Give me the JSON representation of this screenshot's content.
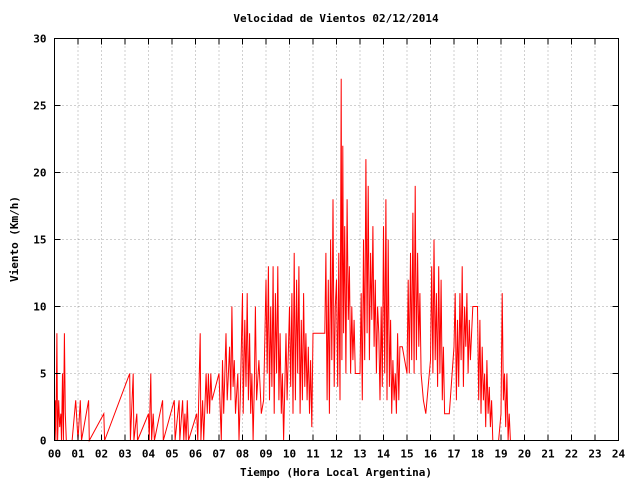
{
  "chart_data": {
    "type": "line",
    "title": "Velocidad de Vientos 02/12/2014",
    "xlabel": "Tiempo (Hora Local Argentina)",
    "ylabel": "Viento (Km/h)",
    "xlim": [
      0,
      24
    ],
    "ylim": [
      0,
      30
    ],
    "x_ticks": [
      "00",
      "01",
      "02",
      "03",
      "04",
      "05",
      "06",
      "07",
      "08",
      "09",
      "10",
      "11",
      "12",
      "13",
      "14",
      "15",
      "16",
      "17",
      "18",
      "19",
      "20",
      "21",
      "22",
      "23",
      "24"
    ],
    "y_ticks": [
      "0",
      "5",
      "10",
      "15",
      "20",
      "25",
      "30"
    ],
    "grid": true,
    "series": [
      {
        "color": "#ff0000",
        "points": [
          [
            0.0,
            0
          ],
          [
            0.03,
            3
          ],
          [
            0.06,
            0
          ],
          [
            0.1,
            8
          ],
          [
            0.13,
            0
          ],
          [
            0.18,
            3
          ],
          [
            0.22,
            1
          ],
          [
            0.27,
            2
          ],
          [
            0.3,
            0
          ],
          [
            0.34,
            5
          ],
          [
            0.38,
            0
          ],
          [
            0.42,
            8
          ],
          [
            0.46,
            2
          ],
          [
            0.5,
            0
          ],
          [
            0.75,
            0
          ],
          [
            0.9,
            3
          ],
          [
            1.0,
            0
          ],
          [
            1.1,
            3
          ],
          [
            1.15,
            0
          ],
          [
            1.45,
            3
          ],
          [
            1.48,
            0
          ],
          [
            2.1,
            2
          ],
          [
            2.13,
            0
          ],
          [
            3.2,
            5
          ],
          [
            3.23,
            0
          ],
          [
            3.35,
            5
          ],
          [
            3.38,
            0
          ],
          [
            3.5,
            2
          ],
          [
            3.53,
            0
          ],
          [
            4.0,
            2
          ],
          [
            4.03,
            0
          ],
          [
            4.1,
            5
          ],
          [
            4.13,
            0
          ],
          [
            4.2,
            2
          ],
          [
            4.25,
            0
          ],
          [
            4.6,
            3
          ],
          [
            4.63,
            0
          ],
          [
            5.1,
            3
          ],
          [
            5.13,
            0
          ],
          [
            5.3,
            3
          ],
          [
            5.33,
            0
          ],
          [
            5.45,
            3
          ],
          [
            5.5,
            0
          ],
          [
            5.55,
            2
          ],
          [
            5.6,
            0
          ],
          [
            5.65,
            3
          ],
          [
            5.7,
            0
          ],
          [
            6.05,
            2
          ],
          [
            6.1,
            0
          ],
          [
            6.2,
            8
          ],
          [
            6.23,
            0
          ],
          [
            6.3,
            3
          ],
          [
            6.35,
            0
          ],
          [
            6.45,
            5
          ],
          [
            6.5,
            2
          ],
          [
            6.55,
            5
          ],
          [
            6.6,
            2
          ],
          [
            6.65,
            5
          ],
          [
            6.7,
            3
          ],
          [
            7.0,
            5
          ],
          [
            7.1,
            0
          ],
          [
            7.15,
            6
          ],
          [
            7.2,
            2
          ],
          [
            7.3,
            8
          ],
          [
            7.35,
            3
          ],
          [
            7.45,
            7
          ],
          [
            7.5,
            3
          ],
          [
            7.55,
            10
          ],
          [
            7.6,
            4
          ],
          [
            7.65,
            6
          ],
          [
            7.7,
            2
          ],
          [
            7.8,
            5
          ],
          [
            7.85,
            0
          ],
          [
            7.9,
            3
          ],
          [
            8.0,
            11
          ],
          [
            8.03,
            2
          ],
          [
            8.1,
            9
          ],
          [
            8.15,
            4
          ],
          [
            8.2,
            11
          ],
          [
            8.25,
            3
          ],
          [
            8.3,
            8
          ],
          [
            8.35,
            2
          ],
          [
            8.4,
            5
          ],
          [
            8.45,
            0
          ],
          [
            8.5,
            4
          ],
          [
            8.55,
            10
          ],
          [
            8.6,
            3
          ],
          [
            8.7,
            6
          ],
          [
            8.8,
            2
          ],
          [
            8.9,
            3
          ],
          [
            9.0,
            12
          ],
          [
            9.05,
            5
          ],
          [
            9.1,
            13
          ],
          [
            9.15,
            3
          ],
          [
            9.2,
            10
          ],
          [
            9.25,
            4
          ],
          [
            9.3,
            13
          ],
          [
            9.35,
            2
          ],
          [
            9.4,
            11
          ],
          [
            9.45,
            5
          ],
          [
            9.5,
            13
          ],
          [
            9.55,
            3
          ],
          [
            9.6,
            8
          ],
          [
            9.65,
            2
          ],
          [
            9.7,
            5
          ],
          [
            9.75,
            0
          ],
          [
            9.85,
            8
          ],
          [
            9.9,
            3
          ],
          [
            10.0,
            10
          ],
          [
            10.05,
            4
          ],
          [
            10.1,
            11
          ],
          [
            10.15,
            2
          ],
          [
            10.2,
            14
          ],
          [
            10.25,
            3
          ],
          [
            10.3,
            12
          ],
          [
            10.35,
            5
          ],
          [
            10.4,
            13
          ],
          [
            10.45,
            2
          ],
          [
            10.5,
            9
          ],
          [
            10.55,
            3
          ],
          [
            10.6,
            11
          ],
          [
            10.65,
            4
          ],
          [
            10.7,
            8
          ],
          [
            10.75,
            3
          ],
          [
            10.8,
            7
          ],
          [
            10.85,
            2
          ],
          [
            10.9,
            6
          ],
          [
            10.95,
            1
          ],
          [
            11.0,
            8
          ],
          [
            11.5,
            8
          ],
          [
            11.55,
            14
          ],
          [
            11.6,
            3
          ],
          [
            11.65,
            12
          ],
          [
            11.7,
            2
          ],
          [
            11.75,
            15
          ],
          [
            11.8,
            6
          ],
          [
            11.85,
            18
          ],
          [
            11.9,
            4
          ],
          [
            11.95,
            10
          ],
          [
            12.0,
            12
          ],
          [
            12.05,
            4
          ],
          [
            12.1,
            14
          ],
          [
            12.15,
            3
          ],
          [
            12.2,
            27
          ],
          [
            12.23,
            6
          ],
          [
            12.27,
            22
          ],
          [
            12.3,
            8
          ],
          [
            12.35,
            16
          ],
          [
            12.4,
            5
          ],
          [
            12.45,
            18
          ],
          [
            12.5,
            9
          ],
          [
            12.55,
            13
          ],
          [
            12.6,
            5
          ],
          [
            12.65,
            10
          ],
          [
            12.7,
            6
          ],
          [
            12.75,
            9
          ],
          [
            12.8,
            5
          ],
          [
            12.9,
            5
          ],
          [
            13.0,
            5
          ],
          [
            13.05,
            11
          ],
          [
            13.1,
            3
          ],
          [
            13.15,
            15
          ],
          [
            13.2,
            6
          ],
          [
            13.25,
            21
          ],
          [
            13.3,
            8
          ],
          [
            13.35,
            19
          ],
          [
            13.4,
            6
          ],
          [
            13.45,
            14
          ],
          [
            13.5,
            9
          ],
          [
            13.55,
            16
          ],
          [
            13.6,
            7
          ],
          [
            13.65,
            12
          ],
          [
            13.7,
            5
          ],
          [
            13.75,
            10
          ],
          [
            13.8,
            8
          ],
          [
            13.85,
            3
          ],
          [
            13.9,
            10
          ],
          [
            13.95,
            4
          ],
          [
            14.0,
            16
          ],
          [
            14.05,
            5
          ],
          [
            14.1,
            18
          ],
          [
            14.15,
            3
          ],
          [
            14.2,
            15
          ],
          [
            14.25,
            4
          ],
          [
            14.3,
            9
          ],
          [
            14.35,
            2
          ],
          [
            14.4,
            6
          ],
          [
            14.45,
            3
          ],
          [
            14.5,
            5
          ],
          [
            14.55,
            2
          ],
          [
            14.6,
            8
          ],
          [
            14.65,
            3
          ],
          [
            14.7,
            7
          ],
          [
            14.8,
            7
          ],
          [
            15.0,
            5
          ],
          [
            15.05,
            12
          ],
          [
            15.1,
            5
          ],
          [
            15.15,
            14
          ],
          [
            15.2,
            6
          ],
          [
            15.25,
            17
          ],
          [
            15.3,
            5
          ],
          [
            15.35,
            19
          ],
          [
            15.4,
            6
          ],
          [
            15.45,
            14
          ],
          [
            15.5,
            7
          ],
          [
            15.55,
            11
          ],
          [
            15.6,
            5
          ],
          [
            15.7,
            3
          ],
          [
            15.8,
            2
          ],
          [
            16.0,
            6
          ],
          [
            16.05,
            13
          ],
          [
            16.1,
            5
          ],
          [
            16.15,
            15
          ],
          [
            16.2,
            6
          ],
          [
            16.25,
            11
          ],
          [
            16.3,
            4
          ],
          [
            16.35,
            13
          ],
          [
            16.4,
            5
          ],
          [
            16.45,
            12
          ],
          [
            16.5,
            3
          ],
          [
            16.55,
            7
          ],
          [
            16.6,
            2
          ],
          [
            16.8,
            2
          ],
          [
            17.0,
            7
          ],
          [
            17.05,
            11
          ],
          [
            17.1,
            3
          ],
          [
            17.15,
            9
          ],
          [
            17.2,
            4
          ],
          [
            17.25,
            11
          ],
          [
            17.3,
            6
          ],
          [
            17.35,
            13
          ],
          [
            17.4,
            4
          ],
          [
            17.45,
            10
          ],
          [
            17.5,
            7
          ],
          [
            17.55,
            11
          ],
          [
            17.6,
            5
          ],
          [
            17.65,
            9
          ],
          [
            17.7,
            6
          ],
          [
            17.8,
            10
          ],
          [
            17.9,
            10
          ],
          [
            18.0,
            10
          ],
          [
            18.05,
            3
          ],
          [
            18.1,
            9
          ],
          [
            18.15,
            2
          ],
          [
            18.2,
            7
          ],
          [
            18.25,
            3
          ],
          [
            18.3,
            5
          ],
          [
            18.35,
            1
          ],
          [
            18.4,
            6
          ],
          [
            18.45,
            2
          ],
          [
            18.5,
            4
          ],
          [
            18.55,
            1
          ],
          [
            18.6,
            3
          ],
          [
            18.65,
            0
          ],
          [
            18.9,
            0
          ],
          [
            19.0,
            2
          ],
          [
            19.05,
            11
          ],
          [
            19.1,
            3
          ],
          [
            19.15,
            5
          ],
          [
            19.2,
            1
          ],
          [
            19.25,
            5
          ],
          [
            19.3,
            0
          ],
          [
            19.35,
            2
          ],
          [
            19.4,
            0
          ]
        ]
      }
    ]
  }
}
